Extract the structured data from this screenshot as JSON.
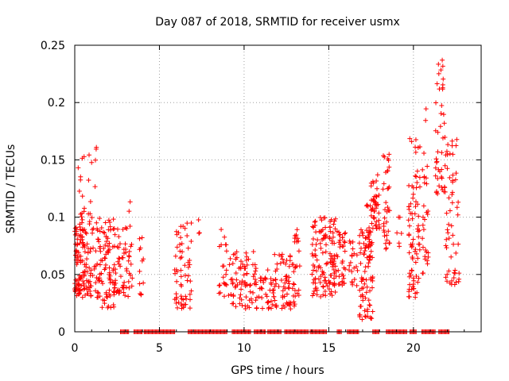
{
  "chart_data": {
    "type": "scatter",
    "title": "Day 087 of 2018, SRMTID for receiver usmx",
    "xlabel": "GPS time / hours",
    "ylabel": "SRMTID / TECUs",
    "xlim": [
      0,
      24
    ],
    "ylim": [
      0,
      0.25
    ],
    "grid": true,
    "marker": "+",
    "colors": {
      "points": "#ff0000",
      "axis": "#000000",
      "grid": "#a0a0a0"
    },
    "x_ticks": [
      {
        "value": 0,
        "label": "0"
      },
      {
        "value": 5,
        "label": "5"
      },
      {
        "value": 10,
        "label": "10"
      },
      {
        "value": 15,
        "label": "15"
      },
      {
        "value": 20,
        "label": "20"
      }
    ],
    "y_ticks": [
      {
        "value": 0,
        "label": "0"
      },
      {
        "value": 0.05,
        "label": "0.05"
      },
      {
        "value": 0.1,
        "label": "0.1"
      },
      {
        "value": 0.15,
        "label": "0.15"
      },
      {
        "value": 0.2,
        "label": "0.2"
      },
      {
        "value": 0.25,
        "label": "0.25"
      }
    ],
    "clusters": [
      {
        "x_range": [
          0.0,
          0.6
        ],
        "y_range": [
          0.03,
          0.1
        ],
        "count": 90
      },
      {
        "x_range": [
          0.2,
          0.6
        ],
        "y_range": [
          0.1,
          0.16
        ],
        "count": 12
      },
      {
        "x_range": [
          0.6,
          1.5
        ],
        "y_range": [
          0.03,
          0.1
        ],
        "count": 70
      },
      {
        "x_range": [
          0.8,
          1.3
        ],
        "y_range": [
          0.1,
          0.165
        ],
        "count": 10
      },
      {
        "x_range": [
          1.5,
          2.4
        ],
        "y_range": [
          0.02,
          0.1
        ],
        "count": 70
      },
      {
        "x_range": [
          2.3,
          3.4
        ],
        "y_range": [
          0.03,
          0.09
        ],
        "count": 60
      },
      {
        "x_range": [
          3.0,
          3.4
        ],
        "y_range": [
          0.09,
          0.115
        ],
        "count": 5
      },
      {
        "x_range": [
          3.8,
          4.1
        ],
        "y_range": [
          0.03,
          0.09
        ],
        "count": 12
      },
      {
        "x_range": [
          5.9,
          6.9
        ],
        "y_range": [
          0.02,
          0.095
        ],
        "count": 60
      },
      {
        "x_range": [
          7.3,
          7.5
        ],
        "y_range": [
          0.07,
          0.1
        ],
        "count": 3
      },
      {
        "x_range": [
          8.5,
          9.4
        ],
        "y_range": [
          0.03,
          0.09
        ],
        "count": 30
      },
      {
        "x_range": [
          9.3,
          10.6
        ],
        "y_range": [
          0.02,
          0.07
        ],
        "count": 60
      },
      {
        "x_range": [
          10.6,
          11.9
        ],
        "y_range": [
          0.02,
          0.06
        ],
        "count": 50
      },
      {
        "x_range": [
          11.8,
          13.0
        ],
        "y_range": [
          0.02,
          0.07
        ],
        "count": 60
      },
      {
        "x_range": [
          12.9,
          13.3
        ],
        "y_range": [
          0.03,
          0.09
        ],
        "count": 20
      },
      {
        "x_range": [
          14.0,
          15.4
        ],
        "y_range": [
          0.03,
          0.1
        ],
        "count": 110
      },
      {
        "x_range": [
          15.0,
          16.0
        ],
        "y_range": [
          0.04,
          0.09
        ],
        "count": 50
      },
      {
        "x_range": [
          16.2,
          16.7
        ],
        "y_range": [
          0.04,
          0.08
        ],
        "count": 20
      },
      {
        "x_range": [
          16.8,
          17.6
        ],
        "y_range": [
          0.01,
          0.09
        ],
        "count": 80
      },
      {
        "x_range": [
          17.2,
          17.6
        ],
        "y_range": [
          0.07,
          0.115
        ],
        "count": 15
      },
      {
        "x_range": [
          17.5,
          18.0
        ],
        "y_range": [
          0.09,
          0.14
        ],
        "count": 40
      },
      {
        "x_range": [
          18.2,
          18.6
        ],
        "y_range": [
          0.07,
          0.16
        ],
        "count": 35
      },
      {
        "x_range": [
          19.0,
          19.4
        ],
        "y_range": [
          0.06,
          0.1
        ],
        "count": 6
      },
      {
        "x_range": [
          19.7,
          20.4
        ],
        "y_range": [
          0.03,
          0.17
        ],
        "count": 80
      },
      {
        "x_range": [
          20.5,
          20.9
        ],
        "y_range": [
          0.05,
          0.2
        ],
        "count": 30
      },
      {
        "x_range": [
          21.3,
          21.9
        ],
        "y_range": [
          0.12,
          0.245
        ],
        "count": 45
      },
      {
        "x_range": [
          21.9,
          22.7
        ],
        "y_range": [
          0.04,
          0.17
        ],
        "count": 55
      }
    ],
    "zero_runs": [
      [
        2.7,
        3.2
      ],
      [
        3.5,
        4.0
      ],
      [
        4.1,
        5.9
      ],
      [
        6.7,
        9.0
      ],
      [
        9.3,
        10.4
      ],
      [
        10.6,
        11.3
      ],
      [
        11.4,
        12.2
      ],
      [
        12.4,
        13.8
      ],
      [
        13.9,
        14.9
      ],
      [
        15.5,
        15.8
      ],
      [
        16.1,
        16.8
      ],
      [
        17.6,
        18.0
      ],
      [
        18.4,
        19.6
      ],
      [
        19.8,
        20.2
      ],
      [
        20.5,
        21.3
      ],
      [
        21.5,
        22.1
      ]
    ]
  }
}
